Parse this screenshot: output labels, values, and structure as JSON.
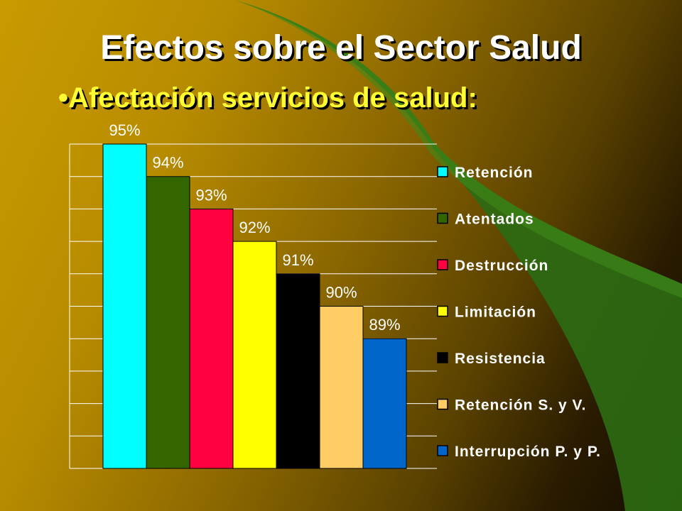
{
  "slide": {
    "title": "Efectos sobre el Sector Salud",
    "subtitle": "•Afectación servicios de salud:"
  },
  "colors": {
    "background_dark": "#120b00",
    "background_gold": "#c99a00",
    "swoosh_green": "#2d6a12",
    "title_text": "#ffffff",
    "subtitle_text": "#ffff33"
  },
  "chart_data": {
    "type": "bar",
    "title": "",
    "xlabel": "",
    "ylabel": "",
    "ylim": [
      85,
      95
    ],
    "grid": true,
    "legend_position": "right",
    "series": [
      {
        "name": "Retención",
        "value": 95,
        "label": "95%",
        "color": "#00ffff"
      },
      {
        "name": "Atentados",
        "value": 94,
        "label": "94%",
        "color": "#336600"
      },
      {
        "name": "Destrucción",
        "value": 93,
        "label": "93%",
        "color": "#ff0040"
      },
      {
        "name": "Limitación",
        "value": 92,
        "label": "92%",
        "color": "#ffff00"
      },
      {
        "name": "Resistencia",
        "value": 91,
        "label": "91%",
        "color": "#000000"
      },
      {
        "name": "Retención S. y V.",
        "value": 90,
        "label": "90%",
        "color": "#ffcc66"
      },
      {
        "name": "Interrupción P. y P.",
        "value": 89,
        "label": "89%",
        "color": "#0066cc"
      }
    ]
  }
}
